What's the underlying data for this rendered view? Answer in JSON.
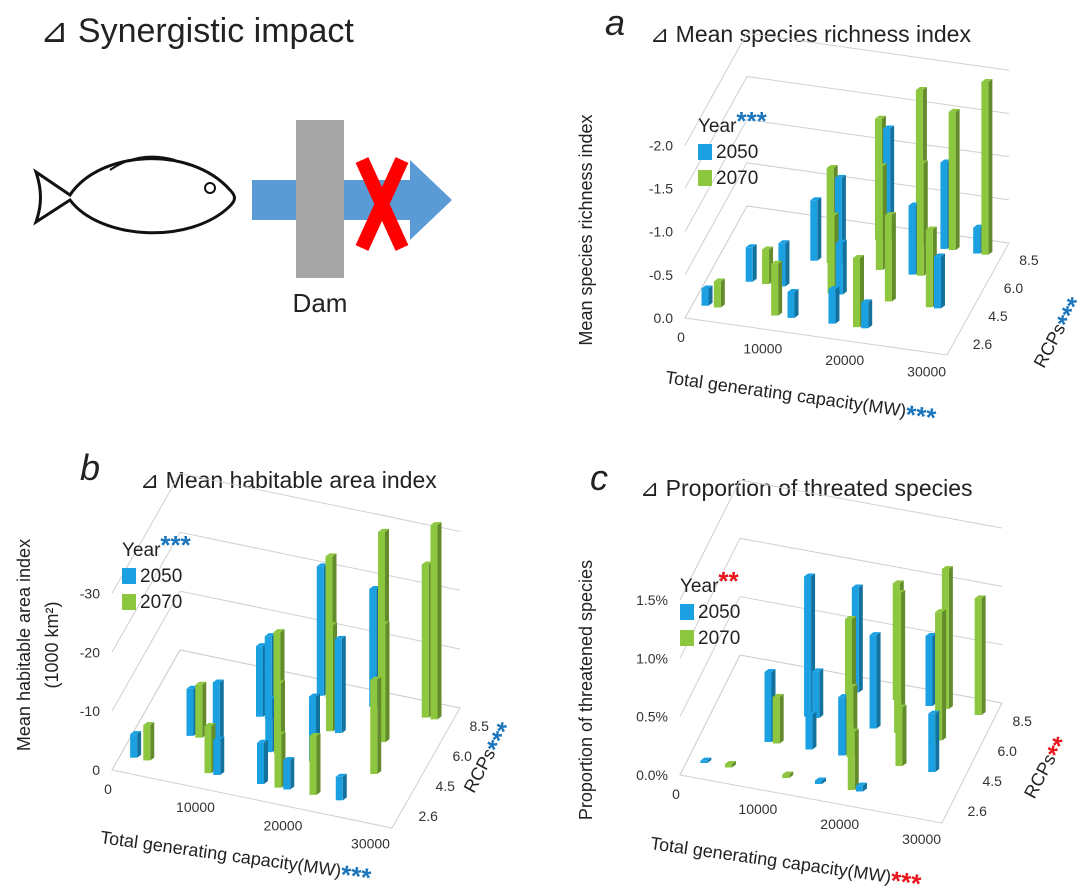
{
  "header": {
    "title": "⊿ Synergistic impact",
    "dam_label": "Dam"
  },
  "chart_data": [
    {
      "type": "bar3d",
      "panel": "a",
      "title": "⊿ Mean species richness index",
      "y_label": "Mean species richness index",
      "x_label": "Total generating capacity(MW)",
      "z_label": "RCPs",
      "legend_title": "Year",
      "significance": {
        "year": {
          "stars": "***",
          "color": "#1b75bc"
        },
        "z": {
          "stars": "***",
          "color": "#1b75bc"
        },
        "x": {
          "stars": "***",
          "color": "#1b75bc"
        }
      },
      "xlim": [
        0,
        32000
      ],
      "xticks": [
        0,
        10000,
        20000,
        30000
      ],
      "zticks": [
        2.6,
        4.5,
        {
          "value": 6,
          "label": "6.0"
        },
        8.5
      ],
      "ylim": [
        0,
        -2.2
      ],
      "yticks": [
        {
          "value": 0,
          "label": "0.0"
        },
        {
          "value": -0.5,
          "label": "-0.5"
        },
        {
          "value": -1,
          "label": "-1.0"
        },
        {
          "value": -1.5,
          "label": "-1.5"
        },
        {
          "value": -2,
          "label": "-2.0"
        }
      ],
      "series": [
        {
          "name": "2050",
          "color": "#1ba1e2",
          "x": [
            1500,
            5000,
            9000,
            12000,
            14000,
            16000,
            18000,
            21000,
            23000,
            25000,
            28000,
            29000,
            11000,
            17000
          ],
          "z": [
            2.6,
            4.5,
            4.5,
            2.6,
            6,
            4.5,
            8.5,
            2.6,
            6,
            8.5,
            4.5,
            8.5,
            6,
            2.6
          ],
          "values": [
            -0.2,
            -0.4,
            -0.5,
            -0.3,
            -1.0,
            -0.6,
            -1.3,
            -0.3,
            -0.8,
            -1.0,
            -0.6,
            -0.3,
            -0.7,
            -0.4
          ]
        },
        {
          "name": "2070",
          "color": "#8dc63f",
          "x": [
            3000,
            7000,
            10000,
            13000,
            15000,
            17000,
            19000,
            20000,
            22000,
            24000,
            26000,
            27000,
            30000,
            22000
          ],
          "z": [
            2.6,
            4.5,
            2.6,
            6,
            4.5,
            8.5,
            6,
            2.6,
            8.5,
            6,
            8.5,
            4.5,
            8.5,
            4.5
          ],
          "values": [
            -0.3,
            -0.4,
            -0.6,
            -1.1,
            -0.9,
            -1.4,
            -1.2,
            -0.8,
            -1.8,
            -1.3,
            -1.6,
            -0.9,
            -2.0,
            -1.0
          ]
        }
      ]
    },
    {
      "type": "bar3d",
      "panel": "b",
      "title": "⊿ Mean habitable area index",
      "y_label": "Mean habitable area index",
      "y_unit": "(1000 km²)",
      "x_label": "Total generating capacity(MW)",
      "z_label": "RCPs",
      "legend_title": "Year",
      "significance": {
        "year": {
          "stars": "***",
          "color": "#1b75bc"
        },
        "z": {
          "stars": "***",
          "color": "#1b75bc"
        },
        "x": {
          "stars": "***",
          "color": "#1b75bc"
        }
      },
      "xlim": [
        0,
        32000
      ],
      "xticks": [
        0,
        10000,
        20000,
        30000
      ],
      "zticks": [
        2.6,
        4.5,
        {
          "value": 6,
          "label": "6.0"
        },
        8.5
      ],
      "ylim": [
        0,
        -35
      ],
      "yticks": [
        0,
        -10,
        -20,
        -30
      ],
      "series": [
        {
          "name": "2050",
          "color": "#1ba1e2",
          "x": [
            1500,
            6000,
            9000,
            11000,
            13000,
            15000,
            17000,
            19000,
            21000,
            23000,
            25000,
            12000,
            16000,
            20000
          ],
          "z": [
            2.6,
            4.5,
            4.5,
            2.6,
            6,
            4.5,
            8.5,
            2.6,
            6,
            8.5,
            2.6,
            6,
            2.6,
            4.5
          ],
          "values": [
            -4,
            -8,
            -10,
            -6,
            -14,
            -9,
            -22,
            -5,
            -16,
            -20,
            -4,
            -12,
            -7,
            -11
          ]
        },
        {
          "name": "2070",
          "color": "#8dc63f",
          "x": [
            3000,
            7000,
            10000,
            14000,
            16000,
            18000,
            20000,
            22000,
            24000,
            26000,
            27000,
            29000,
            30000,
            18000
          ],
          "z": [
            2.6,
            4.5,
            2.6,
            6,
            4.5,
            8.5,
            6,
            2.6,
            8.5,
            6,
            4.5,
            8.5,
            8.5,
            2.6
          ],
          "values": [
            -6,
            -9,
            -8,
            -15,
            -12,
            -24,
            -18,
            -10,
            -30,
            -20,
            -16,
            -26,
            -33,
            -9
          ]
        }
      ]
    },
    {
      "type": "bar3d",
      "panel": "c",
      "title": "⊿ Proportion of threated species",
      "y_label": "Proportion of threatened species",
      "x_label": "Total generating capacity(MW)",
      "z_label": "RCPs",
      "legend_title": "Year",
      "significance": {
        "year": {
          "stars": "**",
          "color": "#e8141c"
        },
        "z": {
          "stars": "**",
          "color": "#e8141c"
        },
        "x": {
          "stars": "***",
          "color": "#e8141c"
        }
      },
      "xlim": [
        0,
        32000
      ],
      "xticks": [
        0,
        10000,
        20000,
        30000
      ],
      "zticks": [
        2.6,
        4.5,
        {
          "value": 6,
          "label": "6.0"
        },
        8.5
      ],
      "ylim": [
        0,
        1.8
      ],
      "yticks": [
        {
          "value": 0,
          "label": "0.0%"
        },
        {
          "value": 0.5,
          "label": "0.5%"
        },
        {
          "value": 1,
          "label": "1.0%"
        },
        {
          "value": 1.5,
          "label": "1.5%"
        }
      ],
      "series": [
        {
          "name": "2050",
          "color": "#1ba1e2",
          "x": [
            2000,
            8000,
            11000,
            13000,
            15000,
            17000,
            19000,
            21000,
            24000,
            28000,
            12000,
            16000
          ],
          "z": [
            2.6,
            4.5,
            6,
            4.5,
            8.5,
            4.5,
            6,
            2.6,
            8.5,
            4.5,
            6,
            2.6
          ],
          "values": [
            0.02,
            0.6,
            1.2,
            0.3,
            0.9,
            0.5,
            0.8,
            0.05,
            0.6,
            0.5,
            0.4,
            0.03
          ]
        },
        {
          "name": "2070",
          "color": "#8dc63f",
          "x": [
            5000,
            9000,
            12000,
            16000,
            18000,
            20000,
            22000,
            24000,
            26000,
            27000,
            30000,
            20000
          ],
          "z": [
            2.6,
            4.5,
            2.6,
            6,
            4.5,
            8.5,
            6,
            4.5,
            8.5,
            6,
            8.5,
            2.6
          ],
          "values": [
            0.03,
            0.4,
            0.03,
            0.9,
            0.6,
            1.0,
            1.2,
            0.5,
            1.2,
            1.1,
            1.0,
            0.5
          ]
        }
      ]
    }
  ]
}
